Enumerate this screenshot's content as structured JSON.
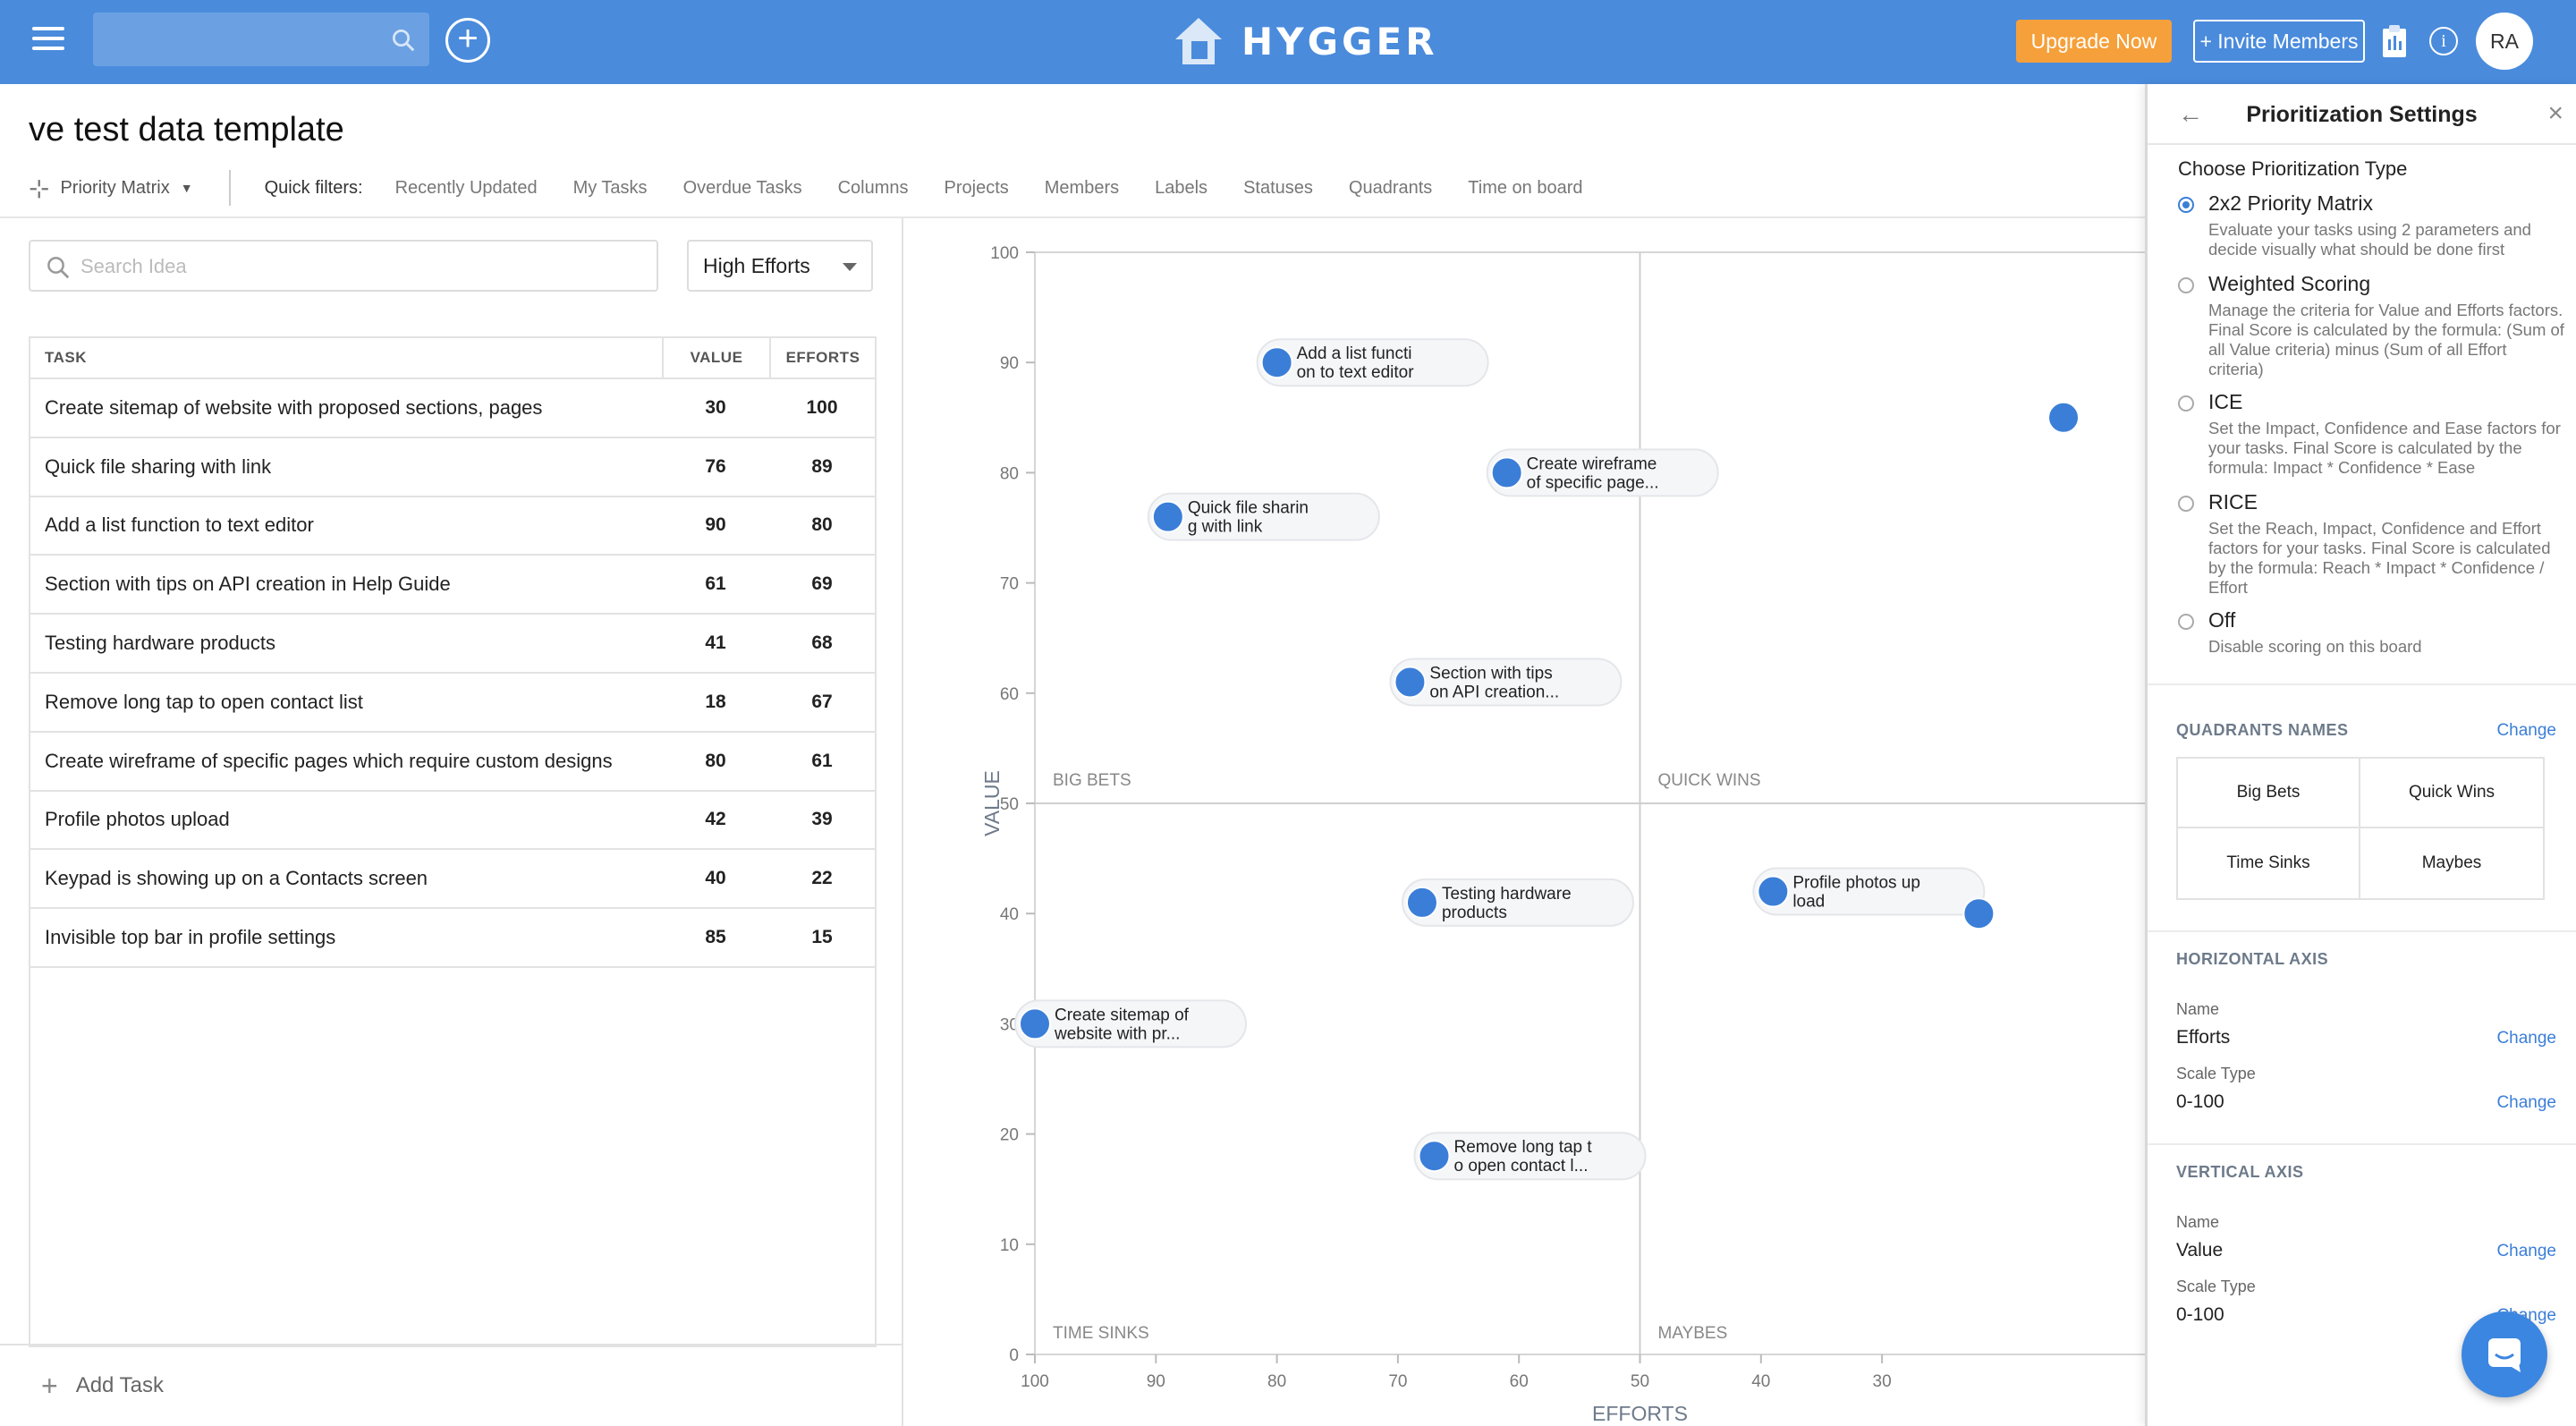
{
  "topbar": {
    "logo_text": "HYGGER",
    "upgrade_label": "Upgrade Now",
    "invite_label": "+ Invite Members",
    "avatar_initials": "RA",
    "info_glyph": "i"
  },
  "board": {
    "title": "ve test data template",
    "view_label": "Priority Matrix",
    "quick_filters_label": "Quick filters:",
    "quick_filters": [
      "Recently Updated",
      "My Tasks",
      "Overdue Tasks",
      "Columns",
      "Projects",
      "Members",
      "Labels",
      "Statuses",
      "Quadrants",
      "Time on board"
    ]
  },
  "left": {
    "search_placeholder": "Search Idea",
    "sort_selected": "High Efforts",
    "columns": {
      "task": "TASK",
      "value": "VALUE",
      "efforts": "EFFORTS"
    },
    "rows": [
      {
        "task": "Create sitemap of website with proposed sections, pages",
        "value": "30",
        "efforts": "100"
      },
      {
        "task": "Quick file sharing with link",
        "value": "76",
        "efforts": "89"
      },
      {
        "task": "Add a list function to text editor",
        "value": "90",
        "efforts": "80"
      },
      {
        "task": "Section with tips on API creation in Help Guide",
        "value": "61",
        "efforts": "69"
      },
      {
        "task": "Testing hardware products",
        "value": "41",
        "efforts": "68"
      },
      {
        "task": "Remove long tap to open contact list",
        "value": "18",
        "efforts": "67"
      },
      {
        "task": "Create wireframe of specific pages which require custom designs",
        "value": "80",
        "efforts": "61"
      },
      {
        "task": "Profile photos upload",
        "value": "42",
        "efforts": "39"
      },
      {
        "task": "Keypad is showing up on a Contacts screen",
        "value": "40",
        "efforts": "22"
      },
      {
        "task": "Invisible top bar in profile settings",
        "value": "85",
        "efforts": "15"
      }
    ],
    "add_task_label": "Add Task"
  },
  "chart_data": {
    "type": "scatter",
    "xlabel": "EFFORTS",
    "ylabel": "VALUE",
    "xlim": [
      100,
      0
    ],
    "ylim": [
      0,
      100
    ],
    "x_reversed": true,
    "x_ticks": [
      100,
      90,
      80,
      70,
      60,
      50,
      40,
      30
    ],
    "y_ticks": [
      0,
      10,
      20,
      30,
      40,
      50,
      60,
      70,
      80,
      90,
      100
    ],
    "quadrants": {
      "top_left": "BIG BETS",
      "top_right": "QUICK WINS",
      "bottom_left": "TIME SINKS",
      "bottom_right": "MAYBES"
    },
    "point_color": "#3b7ed8",
    "points": [
      {
        "x": 100,
        "y": 30,
        "label": [
          "Create sitemap of",
          "website with pr..."
        ]
      },
      {
        "x": 89,
        "y": 76,
        "label": [
          "Quick file sharin",
          "g with link"
        ]
      },
      {
        "x": 80,
        "y": 90,
        "label": [
          "Add a list functi",
          "on to text editor"
        ]
      },
      {
        "x": 69,
        "y": 61,
        "label": [
          "Section with tips",
          "on API creation..."
        ]
      },
      {
        "x": 68,
        "y": 41,
        "label": [
          "Testing hardware",
          "products"
        ]
      },
      {
        "x": 67,
        "y": 18,
        "label": [
          "Remove long tap t",
          "o open contact l..."
        ]
      },
      {
        "x": 61,
        "y": 80,
        "label": [
          "Create wireframe",
          "of specific page..."
        ]
      },
      {
        "x": 39,
        "y": 42,
        "label": [
          "Profile photos up",
          "load"
        ]
      },
      {
        "x": 22,
        "y": 40,
        "label": []
      },
      {
        "x": 15,
        "y": 85,
        "label": []
      }
    ]
  },
  "settings": {
    "title": "Prioritization Settings",
    "choose_label": "Choose Prioritization Type",
    "types": [
      {
        "name": "2x2 Priority Matrix",
        "desc": "Evaluate your tasks using 2 parameters and decide visually what should be done first",
        "checked": true
      },
      {
        "name": "Weighted Scoring",
        "desc": "Manage the criteria for Value and Efforts factors. Final Score is calculated by the formula: (Sum of all Value criteria) minus (Sum of all Effort criteria)",
        "checked": false
      },
      {
        "name": "ICE",
        "desc": "Set the Impact, Confidence and Ease factors for your tasks. Final Score is calculated by the formula: Impact * Confidence * Ease",
        "checked": false
      },
      {
        "name": "RICE",
        "desc": "Set the Reach, Impact, Confidence and Effort factors for your tasks. Final Score is calculated by the formula: Reach * Impact * Confidence / Effort",
        "checked": false
      },
      {
        "name": "Off",
        "desc": "Disable scoring on this board",
        "checked": false
      }
    ],
    "quadrants_title": "QUADRANTS NAMES",
    "change_label": "Change",
    "quadrant_names": [
      "Big Bets",
      "Quick Wins",
      "Time Sinks",
      "Maybes"
    ],
    "horizontal_title": "HORIZONTAL AXIS",
    "vertical_title": "VERTICAL AXIS",
    "name_label": "Name",
    "scale_label": "Scale Type",
    "horizontal_name": "Efforts",
    "horizontal_scale": "0-100",
    "vertical_name": "Value",
    "vertical_scale": "0-100"
  }
}
